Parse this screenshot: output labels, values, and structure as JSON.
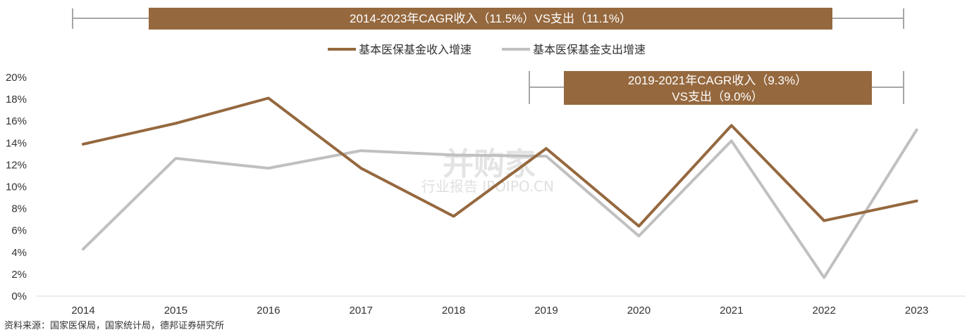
{
  "chart_data": {
    "type": "line",
    "title": "",
    "xlabel": "",
    "ylabel": "",
    "categories": [
      "2014",
      "2015",
      "2016",
      "2017",
      "2018",
      "2019",
      "2020",
      "2021",
      "2022",
      "2023"
    ],
    "ylim": [
      0,
      20
    ],
    "yticks": [
      "0%",
      "2%",
      "4%",
      "6%",
      "8%",
      "10%",
      "12%",
      "14%",
      "16%",
      "18%",
      "20%"
    ],
    "grid": false,
    "legend_position": "top-center",
    "series": [
      {
        "name": "基本医保基金收入增速",
        "color": "#95683E",
        "values": [
          13.9,
          15.8,
          18.1,
          11.7,
          7.3,
          13.5,
          6.4,
          15.6,
          6.9,
          8.7
        ]
      },
      {
        "name": "基本医保基金支出增速",
        "color": "#C0C0C0",
        "values": [
          4.3,
          12.6,
          11.7,
          13.3,
          12.9,
          12.8,
          5.5,
          14.2,
          1.7,
          15.2
        ]
      }
    ],
    "annotations": [
      {
        "text": "2014-2023年CAGR收入（11.5%）VS支出（11.1%）",
        "range": [
          "2014",
          "2023"
        ]
      },
      {
        "line1": "2019-2021年CAGR收入（9.3%）",
        "line2": "VS支出（9.0%）",
        "range": [
          "2019",
          "2021"
        ]
      }
    ],
    "source": "资料来源：国家医保局，国家统计局，德邦证券研究所"
  },
  "watermark": {
    "brand": "并购家",
    "sub": "行业报告 IPOIPO.CN"
  },
  "colors": {
    "banner": "#95683E",
    "bracket": "#A6A6A6",
    "axis": "#D9D9D9"
  }
}
